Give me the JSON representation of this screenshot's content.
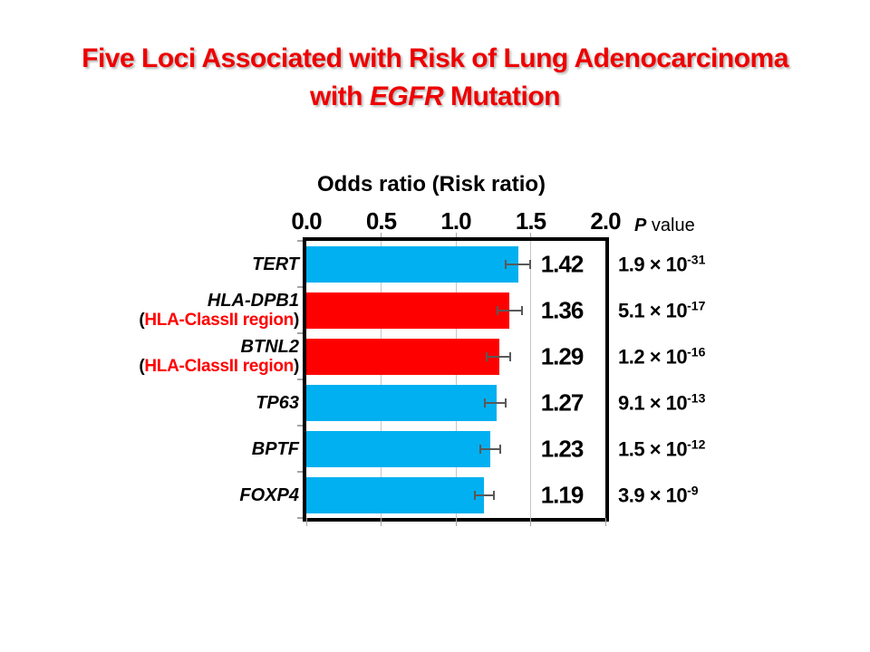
{
  "slide_title": {
    "line1": "Five Loci Associated with Risk of Lung Adenocarcinoma",
    "line2_pre": "with ",
    "line2_italic": "EGFR",
    "line2_post": " Mutation",
    "color": "#EE0000"
  },
  "chart_data": {
    "type": "bar",
    "orientation": "horizontal",
    "axis_title": "Odds ratio (Risk ratio)",
    "x_ticks": [
      "0.0",
      "0.5",
      "1.0",
      "1.5",
      "2.0"
    ],
    "x_range": [
      0,
      2
    ],
    "gridlines_at": [
      0.5,
      1.0,
      1.5
    ],
    "grid": true,
    "p_value_header": {
      "italic_part": "P",
      "regular_part": " value"
    },
    "times_symbol": "×",
    "p_base": "10",
    "paren_open": "(",
    "paren_close": ")",
    "colors": {
      "blue_bar": "#00B0F0",
      "red_bar": "#FF0000",
      "sublabel_red": "#FF0000",
      "gridline": "#C6C6C6",
      "error_bar": "#595959",
      "title_red": "#EE0000"
    },
    "rows": [
      {
        "label": "TERT",
        "sublabel": null,
        "value": 1.42,
        "value_label": "1.42",
        "ci_low": 1.33,
        "ci_high": 1.5,
        "color": "blue",
        "p_mantissa": "1.9",
        "p_exponent": "-31"
      },
      {
        "label": "HLA-DPB1",
        "sublabel": "HLA-ClassII region",
        "value": 1.36,
        "value_label": "1.36",
        "ci_low": 1.27,
        "ci_high": 1.45,
        "color": "red",
        "p_mantissa": "5.1",
        "p_exponent": "-17"
      },
      {
        "label": "BTNL2",
        "sublabel": "HLA-ClassII region",
        "value": 1.29,
        "value_label": "1.29",
        "ci_low": 1.2,
        "ci_high": 1.37,
        "color": "red",
        "p_mantissa": "1.2",
        "p_exponent": "-16"
      },
      {
        "label": "TP63",
        "sublabel": null,
        "value": 1.27,
        "value_label": "1.27",
        "ci_low": 1.19,
        "ci_high": 1.34,
        "color": "blue",
        "p_mantissa": "9.1",
        "p_exponent": "-13"
      },
      {
        "label": "BPTF",
        "sublabel": null,
        "value": 1.23,
        "value_label": "1.23",
        "ci_low": 1.16,
        "ci_high": 1.3,
        "color": "blue",
        "p_mantissa": "1.5",
        "p_exponent": "-12"
      },
      {
        "label": "FOXP4",
        "sublabel": null,
        "value": 1.19,
        "value_label": "1.19",
        "ci_low": 1.12,
        "ci_high": 1.26,
        "color": "blue",
        "p_mantissa": "3.9",
        "p_exponent": "-9"
      }
    ]
  }
}
